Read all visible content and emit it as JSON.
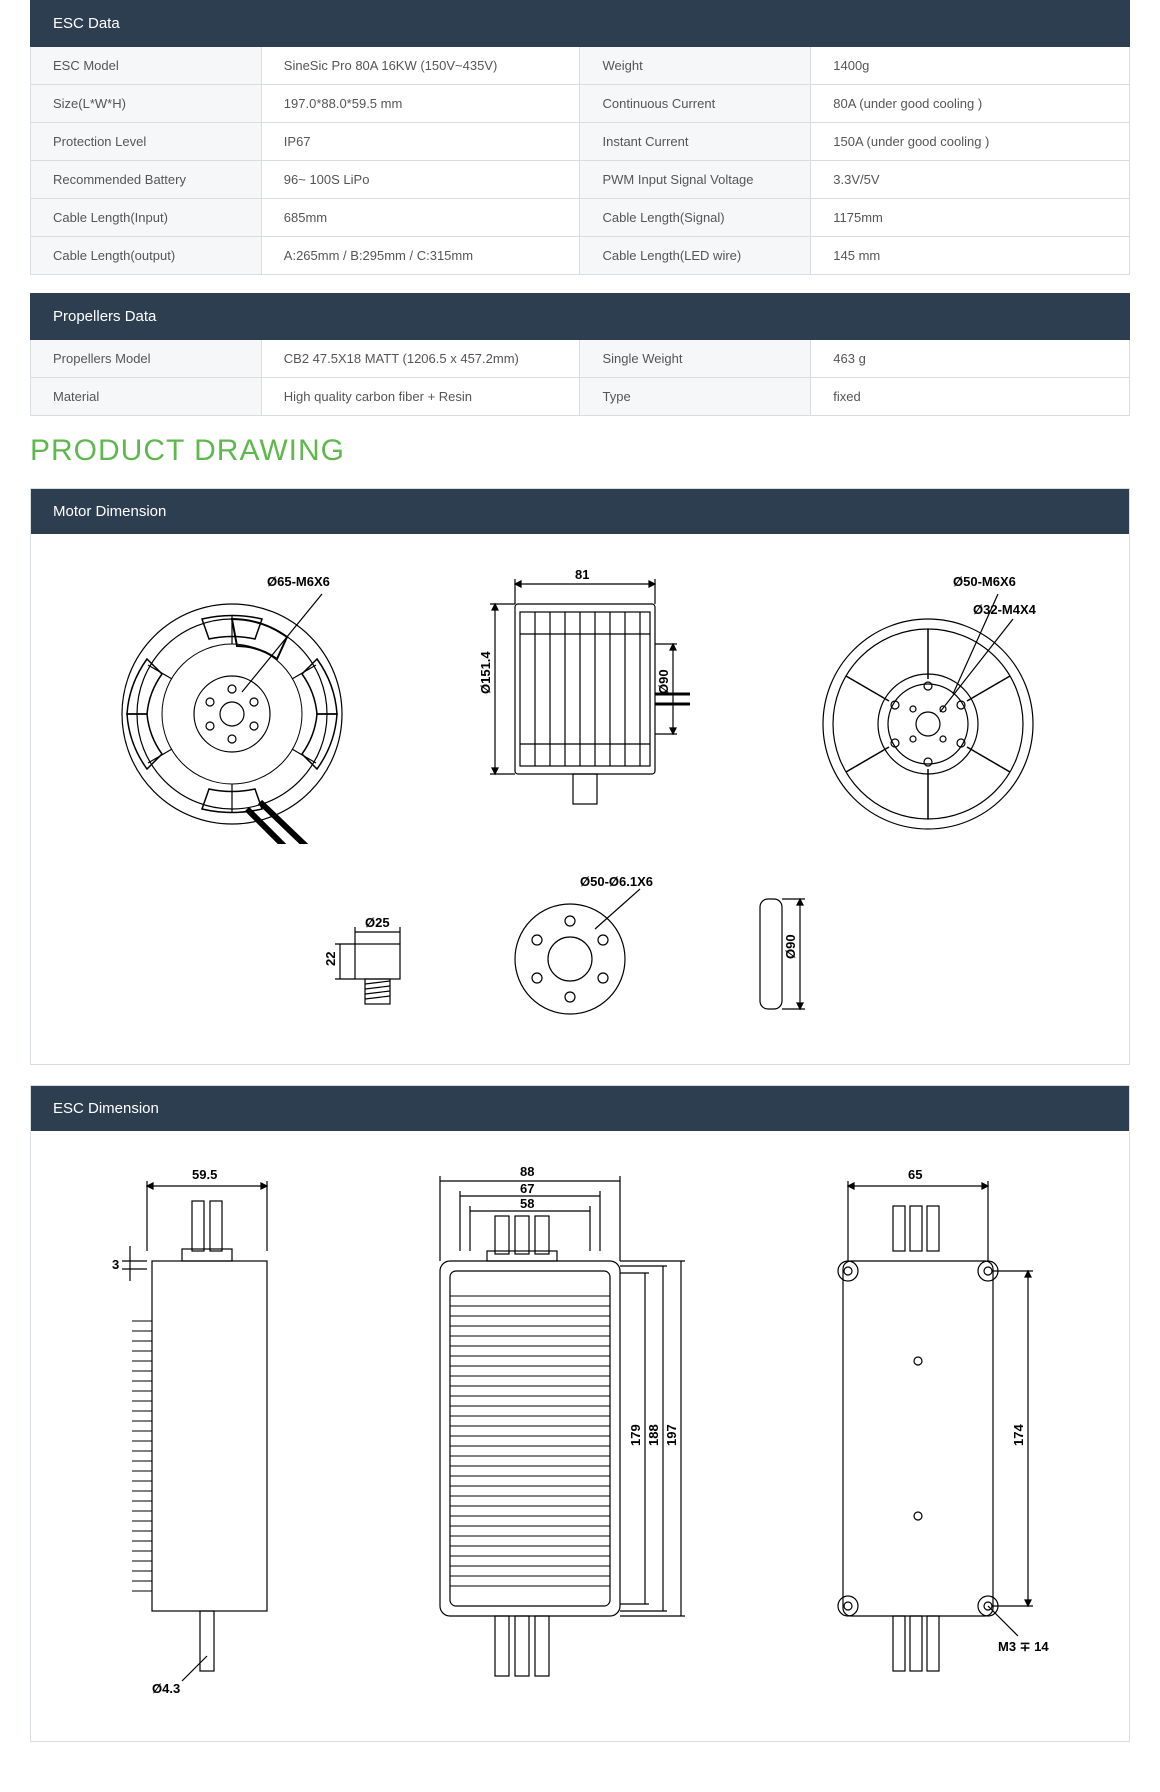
{
  "esc": {
    "header": "ESC Data",
    "rows": [
      {
        "l1": "ESC Model",
        "v1": "SineSic Pro 80A 16KW (150V~435V)",
        "l2": "Weight",
        "v2": "1400g"
      },
      {
        "l1": "Size(L*W*H)",
        "v1": "197.0*88.0*59.5 mm",
        "l2": "Continuous Current",
        "v2": "80A (under good cooling )"
      },
      {
        "l1": "Protection Level",
        "v1": "IP67",
        "l2": "Instant Current",
        "v2": "150A (under good cooling )"
      },
      {
        "l1": "Recommended Battery",
        "v1": "96~ 100S LiPo",
        "l2": "PWM Input Signal Voltage",
        "v2": "3.3V/5V"
      },
      {
        "l1": "Cable Length(Input)",
        "v1": "685mm",
        "l2": "Cable Length(Signal)",
        "v2": "1175mm"
      },
      {
        "l1": "Cable Length(output)",
        "v1": "A:265mm / B:295mm / C:315mm",
        "l2": "Cable Length(LED wire)",
        "v2": "145 mm"
      }
    ]
  },
  "prop": {
    "header": "Propellers Data",
    "rows": [
      {
        "l1": "Propellers Model",
        "v1": "CB2 47.5X18 MATT  (1206.5 x 457.2mm)",
        "l2": "Single Weight",
        "v2": "463 g"
      },
      {
        "l1": "Material",
        "v1": "High quality carbon fiber + Resin",
        "l2": "Type",
        "v2": "fixed"
      }
    ]
  },
  "drawing_title": "PRODUCT DRAWING",
  "motor": {
    "header": "Motor  Dimension",
    "dims": {
      "d65": "Ø65-M6X6",
      "w81": "81",
      "d151": "Ø151.4",
      "d90": "Ø90",
      "d50m6": "Ø50-M6X6",
      "d32m4": "Ø32-M4X4",
      "d25": "Ø25",
      "h22": "22",
      "d50_61": "Ø50-Ø6.1X6",
      "d90b": "Ø90"
    }
  },
  "escdim": {
    "header": "ESC Dimension",
    "dims": {
      "w595": "59.5",
      "h3": "3",
      "d43": "Ø4.3",
      "w88": "88",
      "w67": "67",
      "w58": "58",
      "h179": "179",
      "h188": "188",
      "h197": "197",
      "w65": "65",
      "h174": "174",
      "m3": "M3 ∓ 14"
    }
  },
  "colors": {
    "header_bg": "#2d3e50",
    "border": "#d8dde2",
    "label_bg": "#f5f7f9",
    "accent": "#5fb84e",
    "text": "#555555",
    "line": "#000000"
  }
}
